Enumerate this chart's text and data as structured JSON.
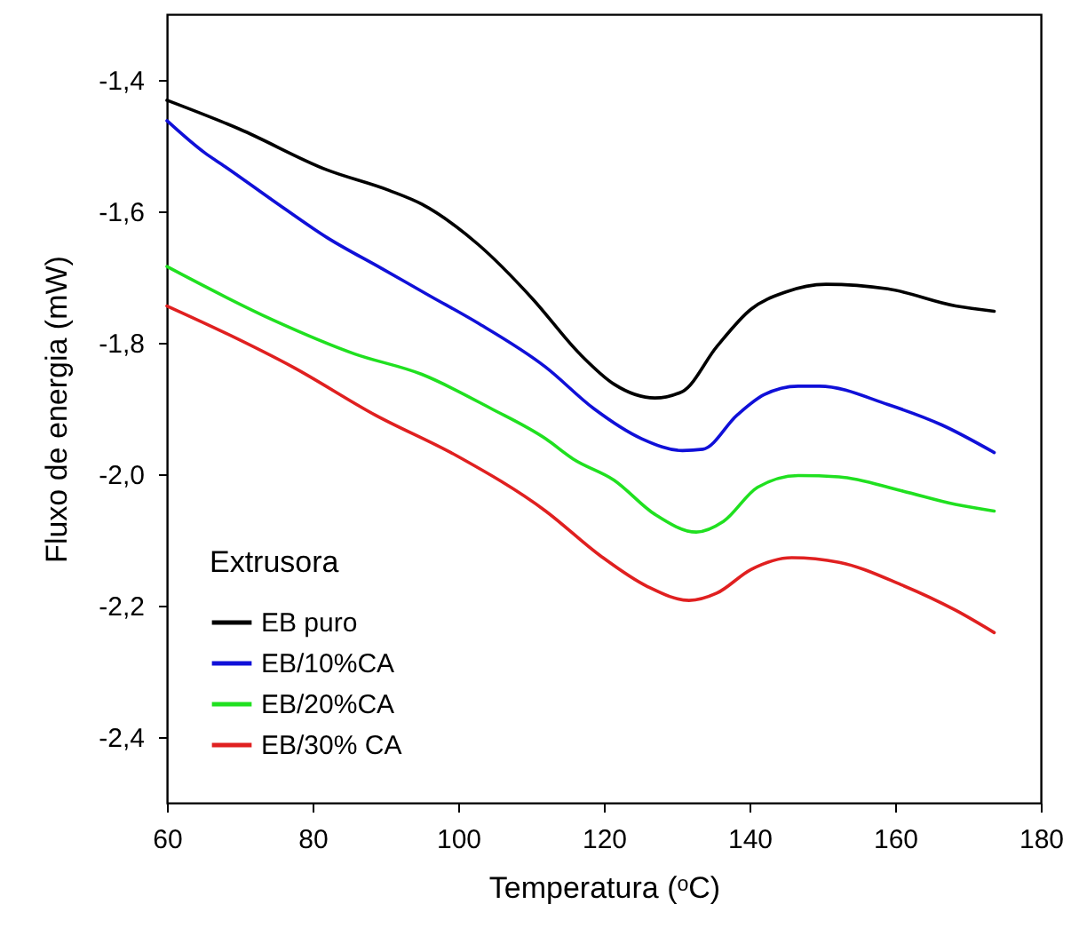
{
  "chart_data": {
    "type": "line",
    "xlabel": "Temperatura (ᵒC)",
    "ylabel": "Fluxo de energia (mW)",
    "legend_title": "Extrusora",
    "legend": "bottom left",
    "grid": false,
    "line_style": "solid",
    "marker": "none",
    "xlim": [
      60,
      180
    ],
    "xticks": [
      60,
      80,
      100,
      120,
      140,
      160,
      180
    ],
    "ylim": [
      -2.5,
      -1.3
    ],
    "yticks": [
      {
        "value": -1.4,
        "label": "-1,4"
      },
      {
        "value": -1.6,
        "label": "-1,6"
      },
      {
        "value": -1.8,
        "label": "-1,8"
      },
      {
        "value": -2.0,
        "label": "-2,0"
      },
      {
        "value": -2.2,
        "label": "-2,2"
      },
      {
        "value": -2.4,
        "label": "-2,4"
      }
    ],
    "series": [
      {
        "name": "EB puro",
        "color": "#000000",
        "x": [
          60,
          70,
          82,
          90.5,
          95,
          102.7,
          110.2,
          116.7,
          121.4,
          127,
          130.8,
          135.5,
          140.2,
          144.9,
          150.5,
          159,
          168.3,
          173.6
        ],
        "values": [
          -1.431,
          -1.475,
          -1.537,
          -1.568,
          -1.589,
          -1.65,
          -1.733,
          -1.817,
          -1.863,
          -1.884,
          -1.874,
          -1.806,
          -1.749,
          -1.723,
          -1.711,
          -1.718,
          -1.744,
          -1.752
        ]
      },
      {
        "name": "EB/10%CA",
        "color": "#1010d8",
        "x": [
          60,
          65.2,
          68,
          74.5,
          82,
          89.5,
          96,
          102.7,
          112,
          118.6,
          125.2,
          130.8,
          133.6,
          138.3,
          142,
          146.7,
          149.6,
          159,
          166.4,
          173.6
        ],
        "values": [
          -1.462,
          -1.511,
          -1.532,
          -1.583,
          -1.64,
          -1.687,
          -1.728,
          -1.77,
          -1.837,
          -1.9,
          -1.946,
          -1.964,
          -1.962,
          -1.91,
          -1.879,
          -1.866,
          -1.866,
          -1.894,
          -1.925,
          -1.967
        ]
      },
      {
        "name": "EB/20%CA",
        "color": "#20e020",
        "x": [
          60,
          74.5,
          85.8,
          95,
          104.5,
          112,
          115.8,
          121.4,
          127,
          132.7,
          136.4,
          141.1,
          146.7,
          152.3,
          160.8,
          168.3,
          173.6
        ],
        "values": [
          -1.684,
          -1.765,
          -1.817,
          -1.848,
          -1.9,
          -1.946,
          -1.977,
          -2.009,
          -2.061,
          -2.088,
          -2.072,
          -2.02,
          -2.002,
          -2.004,
          -2.025,
          -2.046,
          -2.056
        ]
      },
      {
        "name": "EB/30% CA",
        "color": "#e02020",
        "x": [
          60,
          68,
          77.3,
          88.6,
          99.8,
          112,
          119.5,
          126,
          131.7,
          135.5,
          140.2,
          145.8,
          152.3,
          160.8,
          168.3,
          173.6
        ],
        "values": [
          -1.744,
          -1.785,
          -1.837,
          -1.91,
          -1.972,
          -2.056,
          -2.124,
          -2.171,
          -2.192,
          -2.181,
          -2.145,
          -2.127,
          -2.134,
          -2.168,
          -2.207,
          -2.241
        ]
      }
    ]
  }
}
